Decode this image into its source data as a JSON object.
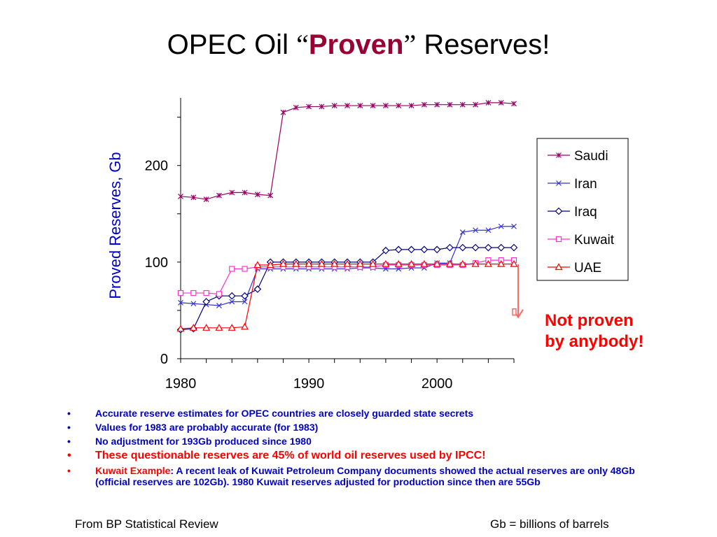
{
  "title": {
    "prefix": "OPEC Oil ",
    "open_quote": "“",
    "emphasis": "Proven",
    "close_quote": "”",
    "suffix": " Reserves!"
  },
  "chart_data": {
    "type": "line",
    "xlabel": "",
    "ylabel": "Proved Reserves, Gb",
    "xlim": [
      1980,
      2006
    ],
    "ylim": [
      0,
      270
    ],
    "x_ticks": [
      1980,
      1990,
      2000
    ],
    "y_ticks": [
      0,
      100,
      200
    ],
    "legend_position": "right",
    "x": [
      1980,
      1981,
      1982,
      1983,
      1984,
      1985,
      1986,
      1987,
      1988,
      1989,
      1990,
      1991,
      1992,
      1993,
      1994,
      1995,
      1996,
      1997,
      1998,
      1999,
      2000,
      2001,
      2002,
      2003,
      2004,
      2005,
      2006
    ],
    "series": [
      {
        "name": "Saudi",
        "color": "#990066",
        "marker": "star",
        "values": [
          168,
          167,
          165,
          169,
          172,
          172,
          170,
          169,
          255,
          260,
          261,
          261,
          262,
          262,
          262,
          262,
          262,
          262,
          262,
          263,
          263,
          263,
          263,
          263,
          265,
          265,
          264
        ]
      },
      {
        "name": "Iran",
        "color": "#3333cc",
        "marker": "x",
        "values": [
          58,
          57,
          56,
          55,
          59,
          59,
          93,
          93,
          93,
          93,
          93,
          93,
          93,
          93,
          94,
          94,
          93,
          93,
          94,
          94,
          99,
          99,
          131,
          133,
          133,
          137,
          137
        ]
      },
      {
        "name": "Iraq",
        "color": "#000080",
        "marker": "diamond",
        "values": [
          30,
          31,
          59,
          65,
          65,
          65,
          72,
          100,
          100,
          100,
          100,
          100,
          100,
          100,
          100,
          100,
          112,
          113,
          113,
          113,
          113,
          115,
          115,
          115,
          115,
          115,
          115
        ]
      },
      {
        "name": "Kuwait",
        "color": "#ff33cc",
        "marker": "square",
        "values": [
          68,
          68,
          68,
          67,
          93,
          93,
          95,
          95,
          95,
          95,
          95,
          95,
          95,
          95,
          95,
          95,
          97,
          97,
          97,
          97,
          97,
          97,
          97,
          99,
          102,
          102,
          102
        ]
      },
      {
        "name": "UAE",
        "color": "#ff0000",
        "marker": "triangle",
        "values": [
          31,
          32,
          32,
          32,
          32,
          33,
          97,
          97,
          98,
          98,
          98,
          98,
          98,
          98,
          98,
          98,
          98,
          98,
          98,
          98,
          98,
          98,
          98,
          98,
          98,
          98,
          98
        ]
      }
    ],
    "annotation": {
      "x": 2006,
      "from": 102,
      "to": 48,
      "marker_value": 48
    }
  },
  "note": {
    "line1": "Not proven",
    "line2": "by anybody!"
  },
  "bullets": [
    {
      "text": "Accurate reserve estimates for OPEC countries are closely guarded state secrets"
    },
    {
      "text": "Values for 1983 are probably accurate (for 1983)"
    },
    {
      "text": "No adjustment for 193Gb produced since 1980"
    },
    {
      "text": "These questionable reserves are 45% of world oil reserves used by IPCC!"
    },
    {
      "lead": "Kuwait Example",
      "text": ": A recent leak of Kuwait Petroleum Company documents showed the actual reserves are only 48Gb (official reserves are 102Gb).  1980 Kuwait reserves adjusted for production since then are 55Gb"
    }
  ],
  "bullet_glyph": "•",
  "footer": {
    "source": "From BP Statistical Review",
    "unit_note": "Gb = billions of barrels"
  }
}
